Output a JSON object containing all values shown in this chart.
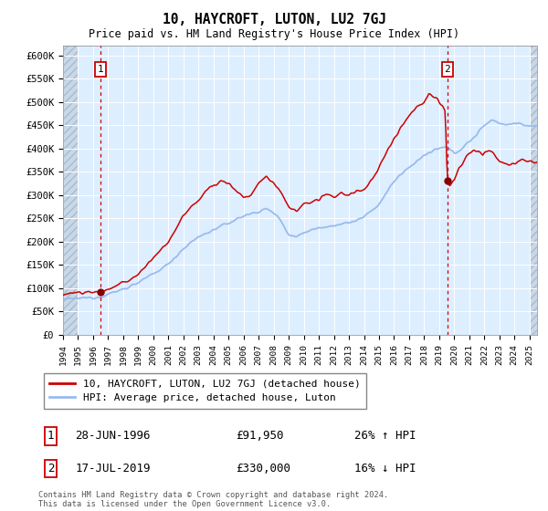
{
  "title": "10, HAYCROFT, LUTON, LU2 7GJ",
  "subtitle": "Price paid vs. HM Land Registry's House Price Index (HPI)",
  "ylim": [
    0,
    620000
  ],
  "xlim_start": 1994.0,
  "xlim_end": 2025.5,
  "yticks": [
    0,
    50000,
    100000,
    150000,
    200000,
    250000,
    300000,
    350000,
    400000,
    450000,
    500000,
    550000,
    600000
  ],
  "ytick_labels": [
    "£0",
    "£50K",
    "£100K",
    "£150K",
    "£200K",
    "£250K",
    "£300K",
    "£350K",
    "£400K",
    "£450K",
    "£500K",
    "£550K",
    "£600K"
  ],
  "sale1_x": 1996.49,
  "sale1_y": 91950,
  "sale1_label": "1",
  "sale1_date": "28-JUN-1996",
  "sale1_price": "£91,950",
  "sale1_hpi": "26% ↑ HPI",
  "sale2_x": 2019.54,
  "sale2_y": 330000,
  "sale2_label": "2",
  "sale2_date": "17-JUL-2019",
  "sale2_price": "£330,000",
  "sale2_hpi": "16% ↓ HPI",
  "hpi_line_color": "#99bbee",
  "price_line_color": "#cc0000",
  "sale_dot_color": "#880000",
  "bg_color": "#ddeeff",
  "grid_color": "#ffffff",
  "legend_label1": "10, HAYCROFT, LUTON, LU2 7GJ (detached house)",
  "legend_label2": "HPI: Average price, detached house, Luton",
  "footnote": "Contains HM Land Registry data © Crown copyright and database right 2024.\nThis data is licensed under the Open Government Licence v3.0."
}
